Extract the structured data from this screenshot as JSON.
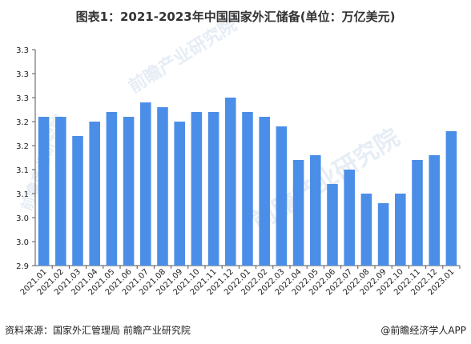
{
  "watermark_text": "前瞻产业研究院",
  "chart_data": {
    "type": "bar",
    "title": "图表1：2021-2023年中国国家外汇储备(单位：万亿美元)",
    "xlabel": "",
    "ylabel": "",
    "categories": [
      "2021.01",
      "2021.02",
      "2021.03",
      "2021.04",
      "2021.05",
      "2021.06",
      "2021.07",
      "2021.08",
      "2021.09",
      "2021.10",
      "2021.11",
      "2021.12",
      "2022.01",
      "2022.02",
      "2022.03",
      "2022.04",
      "2022.05",
      "2022.06",
      "2022.07",
      "2022.08",
      "2022.09",
      "2022.10",
      "2022.11",
      "2022.12",
      "2023.01"
    ],
    "values": [
      3.21,
      3.21,
      3.17,
      3.2,
      3.22,
      3.21,
      3.24,
      3.23,
      3.2,
      3.22,
      3.22,
      3.25,
      3.22,
      3.21,
      3.19,
      3.12,
      3.13,
      3.07,
      3.1,
      3.05,
      3.03,
      3.05,
      3.12,
      3.13,
      3.18
    ],
    "yaxis_min": 2.9,
    "yaxis_max": 3.3,
    "ytick_values": [
      2.9,
      2.95,
      3.0,
      3.05,
      3.1,
      3.15,
      3.2,
      3.25,
      3.3,
      3.35
    ],
    "ytick_labels": [
      "2.9",
      "3.0",
      "3.0",
      "3.1",
      "3.1",
      "3.2",
      "3.2",
      "3.3",
      "3.3",
      "3.3"
    ],
    "bar_color": "#4b8ee8",
    "grid": false
  },
  "footer": {
    "source": "资料来源：国家外汇管理局 前瞻产业研究院",
    "credit": "@前瞻经济学人APP"
  }
}
